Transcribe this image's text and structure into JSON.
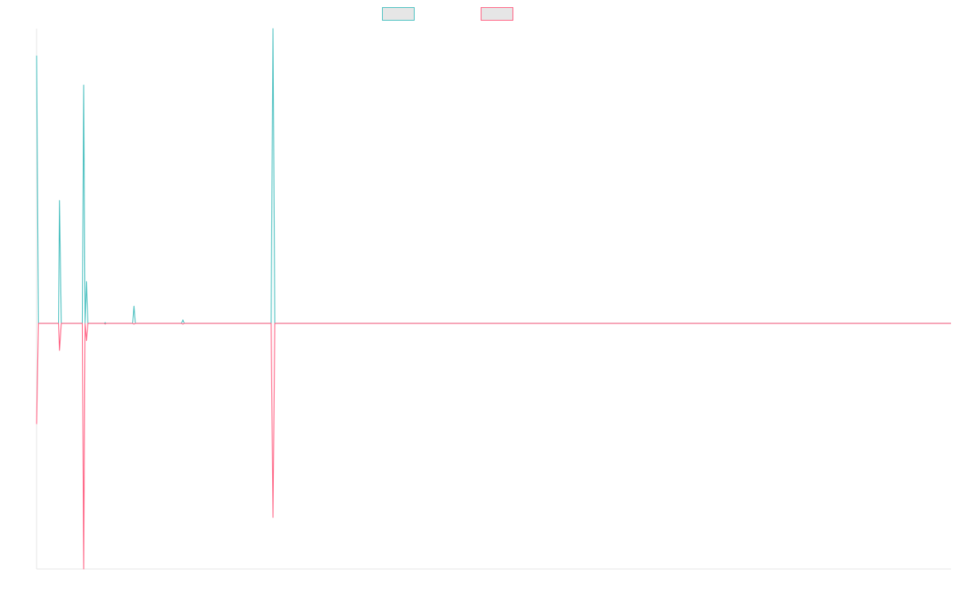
{
  "chart_data": {
    "type": "line",
    "title": "",
    "xlabel": "",
    "ylabel": "",
    "grid": false,
    "legend_position": "top-center",
    "xlim": [
      0,
      2000
    ],
    "ylim": [
      -1,
      1.2
    ],
    "colors": {
      "series_a_stroke": "#4bc0c0",
      "series_a_fill": "#e6e6e6",
      "series_b_stroke": "#ff6384",
      "series_b_fill": "#e6e6e6",
      "axis": "#e6e6e6",
      "background": "#ffffff"
    },
    "series": [
      {
        "color": "#4bc0c0",
        "points": [
          [
            0,
            1.09
          ],
          [
            4,
            0.0
          ],
          [
            48,
            0.0
          ],
          [
            50,
            0.5
          ],
          [
            54,
            0.0
          ],
          [
            100,
            0.0
          ],
          [
            103,
            0.97
          ],
          [
            106,
            0.0
          ],
          [
            109,
            0.17
          ],
          [
            112,
            0.0
          ],
          [
            148,
            0.0
          ],
          [
            150,
            0.003
          ],
          [
            152,
            0.0
          ],
          [
            210,
            0.0
          ],
          [
            213,
            0.07
          ],
          [
            216,
            0.0
          ],
          [
            317,
            0.0
          ],
          [
            320,
            0.014
          ],
          [
            323,
            0.0
          ],
          [
            513,
            0.0
          ],
          [
            517,
            1.2
          ],
          [
            521,
            0.0
          ],
          [
            2000,
            0.0
          ]
        ]
      },
      {
        "color": "#ff6384",
        "points": [
          [
            0,
            -0.41
          ],
          [
            4,
            0.0
          ],
          [
            48,
            0.0
          ],
          [
            50,
            -0.11
          ],
          [
            54,
            0.0
          ],
          [
            100,
            0.0
          ],
          [
            103,
            -1.0
          ],
          [
            106,
            0.0
          ],
          [
            109,
            -0.07
          ],
          [
            112,
            0.0
          ],
          [
            148,
            0.0
          ],
          [
            150,
            -0.003
          ],
          [
            152,
            0.0
          ],
          [
            210,
            0.0
          ],
          [
            213,
            -0.003
          ],
          [
            216,
            0.0
          ],
          [
            317,
            0.0
          ],
          [
            320,
            -0.003
          ],
          [
            323,
            0.0
          ],
          [
            513,
            0.0
          ],
          [
            517,
            -0.79
          ],
          [
            521,
            0.0
          ],
          [
            2000,
            0.0
          ]
        ]
      }
    ]
  }
}
